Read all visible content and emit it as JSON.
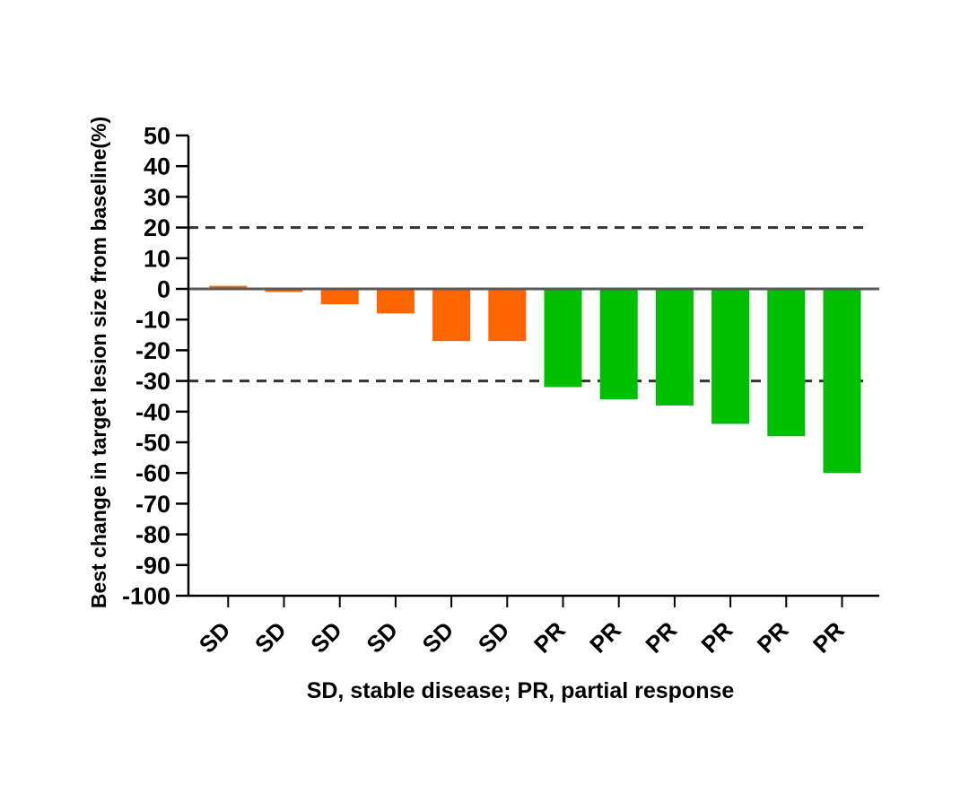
{
  "chart_data": {
    "type": "bar",
    "subtype": "waterfall",
    "title": "",
    "ylabel": "Best change in target lesion size from baseline(%)",
    "xlabel": "",
    "caption": "SD, stable disease; PR, partial response",
    "categories": [
      "SD",
      "SD",
      "SD",
      "SD",
      "SD",
      "SD",
      "PR",
      "PR",
      "PR",
      "PR",
      "PR",
      "PR"
    ],
    "values": [
      1,
      -1,
      -5,
      -8,
      -17,
      -17,
      -32,
      -36,
      -38,
      -44,
      -48,
      -60
    ],
    "groups": {
      "SD": {
        "label": "stable disease",
        "color": "#FF6600"
      },
      "PR": {
        "label": "partial response",
        "color": "#00BE00"
      }
    },
    "ylim": [
      -100,
      50
    ],
    "yticks": [
      50,
      40,
      30,
      20,
      10,
      0,
      -10,
      -20,
      -30,
      -40,
      -50,
      -60,
      -70,
      -80,
      -90,
      -100
    ],
    "reference_lines": [
      20,
      -30
    ],
    "zero_line": 0,
    "grid": false,
    "legend_position": "none",
    "colors": {
      "axis": "#000000",
      "tick_text": "#000000",
      "zero_line": "#595959",
      "reference_line": "#333333",
      "background": "#ffffff"
    }
  }
}
